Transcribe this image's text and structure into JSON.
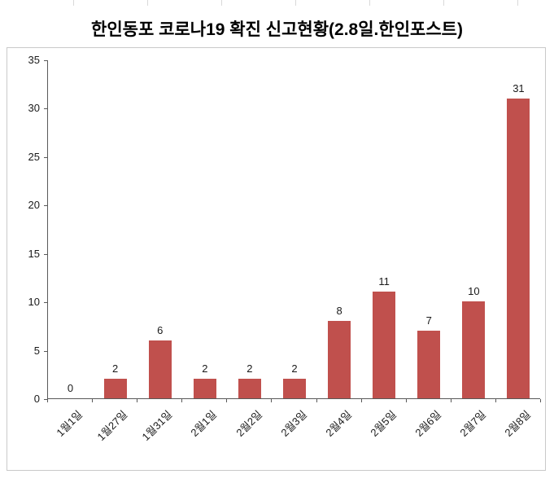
{
  "chart_data": {
    "type": "bar",
    "title": "한인동포 코로나19 확진 신고현황(2.8일.한인포스트)",
    "categories": [
      "1월1일",
      "1월27일",
      "1월31일",
      "2월1일",
      "2월2일",
      "2월3일",
      "2월4일",
      "2월5일",
      "2월6일",
      "2월7일",
      "2월8일"
    ],
    "values": [
      0,
      2,
      6,
      2,
      2,
      2,
      8,
      11,
      7,
      10,
      31
    ],
    "xlabel": "",
    "ylabel": "",
    "ylim": [
      0,
      35
    ],
    "yticks": [
      0,
      5,
      10,
      15,
      20,
      25,
      30,
      35
    ],
    "bar_color": "#c0504d",
    "grid": "off",
    "legend": "none",
    "value_labels": true
  }
}
